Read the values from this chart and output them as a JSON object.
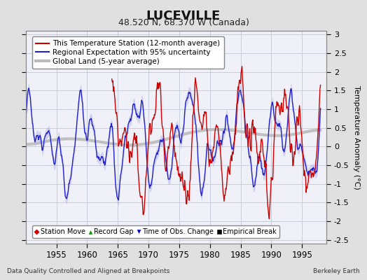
{
  "title": "LUCEVILLE",
  "subtitle": "48.520 N, 68.370 W (Canada)",
  "ylabel": "Temperature Anomaly (°C)",
  "xlabel_note": "Data Quality Controlled and Aligned at Breakpoints",
  "credit": "Berkeley Earth",
  "ylim": [
    -2.6,
    3.1
  ],
  "yticks": [
    -2.5,
    -2,
    -1.5,
    -1,
    -0.5,
    0,
    0.5,
    1,
    1.5,
    2,
    2.5,
    3
  ],
  "xticks": [
    1955,
    1960,
    1965,
    1970,
    1975,
    1980,
    1985,
    1990,
    1995
  ],
  "xlim": [
    1950,
    1999
  ],
  "background_color": "#e0e0e0",
  "plot_bg_color": "#f0f0f8",
  "grid_color": "#c0c8d8",
  "regional_color": "#2222cc",
  "regional_band_color": "#aaaaee",
  "station_color": "#cc0000",
  "global_color": "#bbbbbb",
  "legend_items": [
    {
      "label": "This Temperature Station (12-month average)",
      "color": "#cc0000",
      "lw": 1.5
    },
    {
      "label": "Regional Expectation with 95% uncertainty",
      "color": "#2222cc",
      "lw": 1.5
    },
    {
      "label": "Global Land (5-year average)",
      "color": "#bbbbbb",
      "lw": 3
    }
  ],
  "marker_items": [
    {
      "label": "Station Move",
      "color": "#cc0000",
      "marker": "D"
    },
    {
      "label": "Record Gap",
      "color": "#009900",
      "marker": "^"
    },
    {
      "label": "Time of Obs. Change",
      "color": "#0000cc",
      "marker": "v"
    },
    {
      "label": "Empirical Break",
      "color": "#000000",
      "marker": "s"
    }
  ]
}
